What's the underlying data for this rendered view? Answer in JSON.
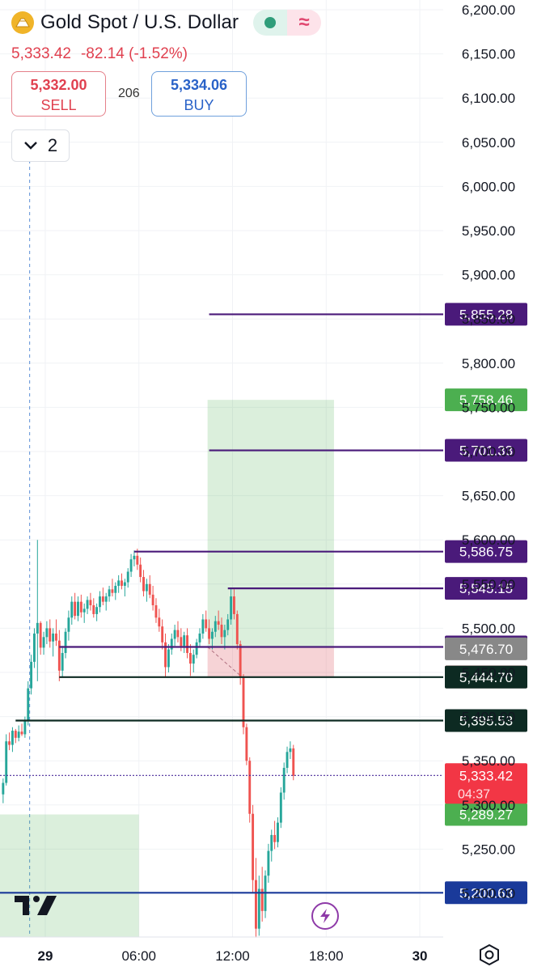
{
  "header": {
    "title": "Gold Spot / U.S. Dollar",
    "last": "5,333.42",
    "change": "-82.14",
    "change_pct": "(-1.52%)",
    "sell_price": "5,332.00",
    "sell_label": "SELL",
    "buy_price": "5,334.06",
    "buy_label": "BUY",
    "spread": "206",
    "collapse_count": "2",
    "status_icons": [
      "market-open-dot-icon",
      "delayed-wave-icon"
    ]
  },
  "chart_data": {
    "type": "candlestick",
    "ylim": [
      5150,
      6220
    ],
    "y_ticks": [
      "6,200.00",
      "6,150.00",
      "6,100.00",
      "6,050.00",
      "6,000.00",
      "5,950.00",
      "5,900.00",
      "5,850.00",
      "5,800.00",
      "5,750.00",
      "5,700.00",
      "5,650.00",
      "5,600.00",
      "5,550.00",
      "5,500.00",
      "5,450.00",
      "5,400.00",
      "5,350.00",
      "5,300.00",
      "5,250.00",
      "5,200.00"
    ],
    "x_ticks": [
      "29",
      "06:00",
      "12:00",
      "18:00",
      "30"
    ],
    "x_tick_times": [
      0,
      6,
      12,
      18,
      24
    ],
    "xlim": [
      -2.9,
      25.5
    ],
    "candles": [
      [
        -2.7,
        5312,
        5330,
        5302,
        5325
      ],
      [
        -2.5,
        5325,
        5380,
        5322,
        5372
      ],
      [
        -2.3,
        5372,
        5382,
        5362,
        5368
      ],
      [
        -2.1,
        5368,
        5388,
        5360,
        5384
      ],
      [
        -1.9,
        5384,
        5386,
        5370,
        5376
      ],
      [
        -1.7,
        5376,
        5390,
        5372,
        5383
      ],
      [
        -1.5,
        5383,
        5392,
        5378,
        5380
      ],
      [
        -1.3,
        5380,
        5400,
        5376,
        5395
      ],
      [
        -1.1,
        5395,
        5440,
        5390,
        5432
      ],
      [
        -0.9,
        5432,
        5470,
        5425,
        5462
      ],
      [
        -0.7,
        5462,
        5500,
        5455,
        5494
      ],
      [
        -0.5,
        5494,
        5600,
        5440,
        5506
      ],
      [
        -0.3,
        5506,
        5508,
        5470,
        5478
      ],
      [
        -0.1,
        5478,
        5496,
        5470,
        5490
      ],
      [
        0.1,
        5490,
        5508,
        5482,
        5500
      ],
      [
        0.3,
        5500,
        5510,
        5478,
        5485
      ],
      [
        0.5,
        5485,
        5500,
        5468,
        5494
      ],
      [
        0.7,
        5494,
        5510,
        5480,
        5486
      ],
      [
        0.9,
        5486,
        5498,
        5440,
        5452
      ],
      [
        1.1,
        5452,
        5480,
        5444,
        5472
      ],
      [
        1.3,
        5472,
        5500,
        5466,
        5496
      ],
      [
        1.5,
        5496,
        5520,
        5486,
        5512
      ],
      [
        1.7,
        5512,
        5536,
        5504,
        5530
      ],
      [
        1.9,
        5530,
        5540,
        5510,
        5514
      ],
      [
        2.1,
        5514,
        5536,
        5508,
        5530
      ],
      [
        2.3,
        5530,
        5538,
        5512,
        5518
      ],
      [
        2.5,
        5518,
        5528,
        5506,
        5522
      ],
      [
        2.7,
        5522,
        5536,
        5516,
        5532
      ],
      [
        2.9,
        5532,
        5540,
        5520,
        5526
      ],
      [
        3.1,
        5526,
        5534,
        5512,
        5516
      ],
      [
        3.3,
        5516,
        5528,
        5508,
        5524
      ],
      [
        3.5,
        5524,
        5542,
        5518,
        5536
      ],
      [
        3.7,
        5536,
        5546,
        5526,
        5530
      ],
      [
        3.9,
        5530,
        5540,
        5520,
        5536
      ],
      [
        4.1,
        5536,
        5548,
        5530,
        5544
      ],
      [
        4.3,
        5544,
        5556,
        5536,
        5540
      ],
      [
        4.5,
        5540,
        5552,
        5532,
        5548
      ],
      [
        4.7,
        5548,
        5560,
        5540,
        5554
      ],
      [
        4.9,
        5554,
        5562,
        5544,
        5548
      ],
      [
        5.1,
        5548,
        5556,
        5536,
        5552
      ],
      [
        5.3,
        5552,
        5568,
        5546,
        5564
      ],
      [
        5.5,
        5564,
        5584,
        5558,
        5578
      ],
      [
        5.7,
        5578,
        5588,
        5570,
        5582
      ],
      [
        5.9,
        5582,
        5590,
        5566,
        5572
      ],
      [
        6.1,
        5572,
        5580,
        5552,
        5558
      ],
      [
        6.3,
        5558,
        5566,
        5536,
        5542
      ],
      [
        6.5,
        5542,
        5556,
        5530,
        5550
      ],
      [
        6.7,
        5550,
        5560,
        5534,
        5538
      ],
      [
        6.9,
        5538,
        5548,
        5520,
        5526
      ],
      [
        7.1,
        5526,
        5534,
        5506,
        5512
      ],
      [
        7.3,
        5512,
        5522,
        5496,
        5502
      ],
      [
        7.5,
        5502,
        5510,
        5476,
        5484
      ],
      [
        7.7,
        5484,
        5494,
        5444,
        5456
      ],
      [
        7.9,
        5456,
        5482,
        5450,
        5476
      ],
      [
        8.1,
        5476,
        5494,
        5470,
        5488
      ],
      [
        8.3,
        5488,
        5504,
        5480,
        5498
      ],
      [
        8.5,
        5498,
        5508,
        5484,
        5490
      ],
      [
        8.7,
        5490,
        5500,
        5474,
        5480
      ],
      [
        8.9,
        5480,
        5496,
        5472,
        5492
      ],
      [
        9.1,
        5492,
        5500,
        5466,
        5472
      ],
      [
        9.3,
        5472,
        5482,
        5446,
        5460
      ],
      [
        9.5,
        5460,
        5476,
        5450,
        5470
      ],
      [
        9.7,
        5470,
        5488,
        5466,
        5484
      ],
      [
        9.9,
        5484,
        5500,
        5478,
        5494
      ],
      [
        10.1,
        5494,
        5516,
        5488,
        5510
      ],
      [
        10.3,
        5510,
        5520,
        5496,
        5500
      ],
      [
        10.5,
        5500,
        5510,
        5482,
        5488
      ],
      [
        10.7,
        5488,
        5500,
        5476,
        5496
      ],
      [
        10.9,
        5496,
        5514,
        5490,
        5508
      ],
      [
        11.1,
        5508,
        5520,
        5498,
        5504
      ],
      [
        11.3,
        5504,
        5512,
        5482,
        5490
      ],
      [
        11.5,
        5490,
        5504,
        5476,
        5498
      ],
      [
        11.7,
        5498,
        5516,
        5492,
        5510
      ],
      [
        11.9,
        5510,
        5545,
        5504,
        5536
      ],
      [
        12.1,
        5536,
        5544,
        5510,
        5516
      ],
      [
        12.3,
        5516,
        5520,
        5476,
        5482
      ],
      [
        12.5,
        5482,
        5486,
        5436,
        5444
      ],
      [
        12.7,
        5444,
        5448,
        5380,
        5388
      ],
      [
        12.9,
        5388,
        5392,
        5345,
        5350
      ],
      [
        13.1,
        5350,
        5354,
        5280,
        5290
      ],
      [
        13.3,
        5290,
        5300,
        5200,
        5215
      ],
      [
        13.5,
        5215,
        5240,
        5150,
        5160
      ],
      [
        13.7,
        5160,
        5220,
        5152,
        5205
      ],
      [
        13.9,
        5205,
        5230,
        5168,
        5180
      ],
      [
        14.1,
        5180,
        5226,
        5172,
        5220
      ],
      [
        14.3,
        5220,
        5256,
        5212,
        5248
      ],
      [
        14.5,
        5248,
        5272,
        5236,
        5266
      ],
      [
        14.7,
        5266,
        5282,
        5250,
        5258
      ],
      [
        14.9,
        5258,
        5286,
        5252,
        5280
      ],
      [
        15.1,
        5280,
        5320,
        5274,
        5314
      ],
      [
        15.3,
        5314,
        5348,
        5306,
        5342
      ],
      [
        15.5,
        5342,
        5366,
        5336,
        5360
      ],
      [
        15.7,
        5360,
        5372,
        5352,
        5364
      ],
      [
        15.9,
        5364,
        5368,
        5328,
        5333
      ]
    ],
    "current_price": {
      "price": 5333.42,
      "label": "5,333.42",
      "countdown": "04:37"
    },
    "levels": [
      {
        "price": 5855.28,
        "label": "5,855.28",
        "color": "#4a1a7a",
        "start": 10.5
      },
      {
        "price": 5758.46,
        "label": "5,758.46",
        "color": "#4caf50",
        "start": null
      },
      {
        "price": 5701.33,
        "label": "5,701.33",
        "color": "#4a1a7a",
        "start": 10.5
      },
      {
        "price": 5586.75,
        "label": "5,586.75",
        "color": "#4a1a7a",
        "start": 5.7
      },
      {
        "price": 5545.15,
        "label": "5,545.15",
        "color": "#4a1a7a",
        "start": 11.7
      },
      {
        "price": 5478.83,
        "label": "5,478.83",
        "color": "#4a1a7a",
        "start": 0.9
      },
      {
        "price": 5476.7,
        "label": "5,476.70",
        "color": "#888888",
        "start": null
      },
      {
        "price": 5444.86,
        "label": "5,444.86",
        "color": "#7a1f24",
        "start": null
      },
      {
        "price": 5444.7,
        "label": "5,444.70",
        "color": "#0d2a22",
        "start": 0.9
      },
      {
        "price": 5395.53,
        "label": "5,395.53",
        "color": "#0d2a22",
        "start": -1.9
      },
      {
        "price": 5333.03,
        "label": "5,333.03",
        "color": "#1a3a9a",
        "start": null
      },
      {
        "price": 5289.27,
        "label": "5,289.27",
        "color": "#4caf50",
        "start": null
      },
      {
        "price": 5200.63,
        "label": "5,200.63",
        "color": "#1a3a9a",
        "start": -2.9
      }
    ],
    "position_zones": [
      {
        "type": "profit",
        "x0": 10.4,
        "x1": 18.5,
        "y0": 5478.83,
        "y1": 5758.46
      },
      {
        "type": "loss",
        "x0": 10.4,
        "x1": 18.5,
        "y0": 5444.86,
        "y1": 5478.83
      },
      {
        "type": "profit",
        "x0": -2.9,
        "x1": 6.0,
        "y0": 5150,
        "y1": 5289.27
      }
    ],
    "crosshair_time": -1.0
  },
  "footer": {
    "logo_text": "17",
    "icons": [
      "flash-icon",
      "settings-icon"
    ]
  }
}
